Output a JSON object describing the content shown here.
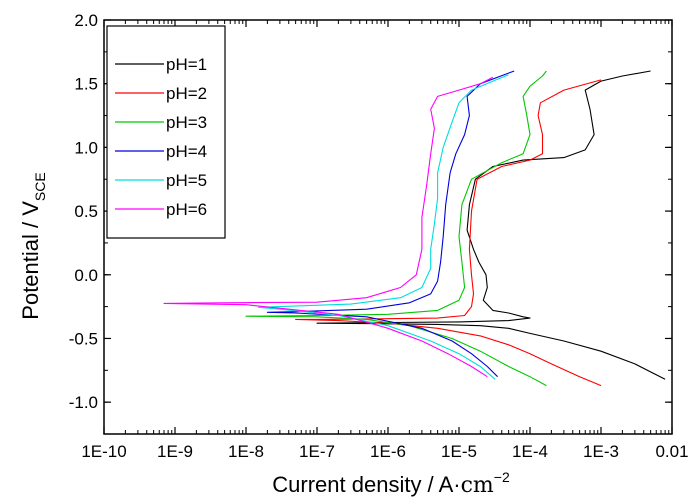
{
  "chart_data": {
    "type": "line",
    "title": "",
    "xlabel_main": "Current density / A",
    "xlabel_unit": "cm",
    "xlabel_unit_exponent": "−2",
    "ylabel_main": "Potential / V",
    "ylabel_subscript": "SCE",
    "x_scale": "log",
    "xlim": [
      1e-10,
      0.01
    ],
    "ylim": [
      -1.25,
      2.0
    ],
    "x_ticks": [
      {
        "value": 1e-10,
        "label": "1E-10"
      },
      {
        "value": 1e-09,
        "label": "1E-9"
      },
      {
        "value": 1e-08,
        "label": "1E-8"
      },
      {
        "value": 1e-07,
        "label": "1E-7"
      },
      {
        "value": 1e-06,
        "label": "1E-6"
      },
      {
        "value": 1e-05,
        "label": "1E-5"
      },
      {
        "value": 0.0001,
        "label": "1E-4"
      },
      {
        "value": 0.001,
        "label": "1E-3"
      },
      {
        "value": 0.01,
        "label": "0.01"
      }
    ],
    "y_ticks": [
      {
        "value": 2.0,
        "label": "2.0"
      },
      {
        "value": 1.5,
        "label": "1.5"
      },
      {
        "value": 1.0,
        "label": "1.0"
      },
      {
        "value": 0.5,
        "label": "0.5"
      },
      {
        "value": 0.0,
        "label": "0.0"
      },
      {
        "value": -0.5,
        "label": "-0.5"
      },
      {
        "value": -1.0,
        "label": "-1.0"
      }
    ],
    "grid": false,
    "legend_position": "top-left",
    "series": [
      {
        "name": "pH=1",
        "color": "#000000",
        "points": [
          [
            0.008,
            -0.82
          ],
          [
            0.003,
            -0.7
          ],
          [
            0.001,
            -0.6
          ],
          [
            0.0003,
            -0.52
          ],
          [
            0.0001,
            -0.46
          ],
          [
            5e-05,
            -0.42
          ],
          [
            2e-05,
            -0.4
          ],
          [
            5e-06,
            -0.39
          ],
          [
            1e-06,
            -0.385
          ],
          [
            1e-07,
            -0.38
          ],
          [
            1e-06,
            -0.375
          ],
          [
            1e-05,
            -0.37
          ],
          [
            5e-05,
            -0.36
          ],
          [
            0.0001,
            -0.34
          ],
          [
            8e-05,
            -0.33
          ],
          [
            5e-05,
            -0.3
          ],
          [
            3e-05,
            -0.28
          ],
          [
            2.2e-05,
            -0.2
          ],
          [
            2.5e-05,
            -0.1
          ],
          [
            2.4e-05,
            0.0
          ],
          [
            1.9e-05,
            0.1
          ],
          [
            1.6e-05,
            0.2
          ],
          [
            1.3e-05,
            0.35
          ],
          [
            1.4e-05,
            0.55
          ],
          [
            1.7e-05,
            0.75
          ],
          [
            3e-05,
            0.85
          ],
          [
            8e-05,
            0.9
          ],
          [
            0.0003,
            0.92
          ],
          [
            0.0006,
            0.98
          ],
          [
            0.0008,
            1.1
          ],
          [
            0.0007,
            1.3
          ],
          [
            0.0006,
            1.45
          ],
          [
            0.001,
            1.52
          ],
          [
            0.002,
            1.56
          ],
          [
            0.005,
            1.6
          ]
        ]
      },
      {
        "name": "pH=2",
        "color": "#ff0000",
        "points": [
          [
            0.001,
            -0.87
          ],
          [
            0.0005,
            -0.8
          ],
          [
            0.0002,
            -0.7
          ],
          [
            0.0001,
            -0.62
          ],
          [
            5e-05,
            -0.55
          ],
          [
            2e-05,
            -0.48
          ],
          [
            5e-06,
            -0.42
          ],
          [
            1e-06,
            -0.38
          ],
          [
            2e-07,
            -0.36
          ],
          [
            5e-08,
            -0.35
          ],
          [
            1e-07,
            -0.35
          ],
          [
            1e-06,
            -0.345
          ],
          [
            5e-06,
            -0.34
          ],
          [
            1.2e-05,
            -0.32
          ],
          [
            1.5e-05,
            -0.25
          ],
          [
            1.6e-05,
            -0.15
          ],
          [
            1.5e-05,
            0.0
          ],
          [
            1.4e-05,
            0.2
          ],
          [
            1.5e-05,
            0.5
          ],
          [
            1.8e-05,
            0.75
          ],
          [
            4e-05,
            0.85
          ],
          [
            0.0001,
            0.9
          ],
          [
            0.00015,
            0.95
          ],
          [
            0.00015,
            1.1
          ],
          [
            0.00013,
            1.25
          ],
          [
            0.00014,
            1.35
          ],
          [
            0.0003,
            1.45
          ],
          [
            0.001,
            1.53
          ]
        ]
      },
      {
        "name": "pH=3",
        "color": "#00c800",
        "points": [
          [
            0.00017,
            -0.87
          ],
          [
            0.0001,
            -0.8
          ],
          [
            5e-05,
            -0.72
          ],
          [
            2e-05,
            -0.6
          ],
          [
            8e-06,
            -0.5
          ],
          [
            2e-06,
            -0.4
          ],
          [
            5e-07,
            -0.35
          ],
          [
            1e-07,
            -0.33
          ],
          [
            1e-08,
            -0.325
          ],
          [
            1e-07,
            -0.32
          ],
          [
            1e-06,
            -0.31
          ],
          [
            5e-06,
            -0.28
          ],
          [
            1e-05,
            -0.2
          ],
          [
            1.2e-05,
            -0.1
          ],
          [
            1.1e-05,
            0.1
          ],
          [
            1e-05,
            0.3
          ],
          [
            1.1e-05,
            0.55
          ],
          [
            1.5e-05,
            0.75
          ],
          [
            4e-05,
            0.88
          ],
          [
            8e-05,
            0.95
          ],
          [
            0.0001,
            1.1
          ],
          [
            9e-05,
            1.25
          ],
          [
            8e-05,
            1.4
          ],
          [
            0.0001,
            1.48
          ],
          [
            0.00015,
            1.56
          ],
          [
            0.00017,
            1.6
          ]
        ]
      },
      {
        "name": "pH=4",
        "color": "#0000dd",
        "points": [
          [
            3.5e-05,
            -0.8
          ],
          [
            2.5e-05,
            -0.72
          ],
          [
            1.5e-05,
            -0.62
          ],
          [
            8e-06,
            -0.52
          ],
          [
            3e-06,
            -0.42
          ],
          [
            5e-07,
            -0.33
          ],
          [
            5e-08,
            -0.3
          ],
          [
            2e-08,
            -0.295
          ],
          [
            5e-08,
            -0.29
          ],
          [
            5e-07,
            -0.27
          ],
          [
            2e-06,
            -0.22
          ],
          [
            4e-06,
            -0.15
          ],
          [
            5e-06,
            -0.05
          ],
          [
            5.5e-06,
            0.1
          ],
          [
            6e-06,
            0.3
          ],
          [
            6.5e-06,
            0.55
          ],
          [
            7.5e-06,
            0.8
          ],
          [
            9e-06,
            0.95
          ],
          [
            1.2e-05,
            1.1
          ],
          [
            1.4e-05,
            1.25
          ],
          [
            1.3e-05,
            1.4
          ],
          [
            2e-05,
            1.5
          ],
          [
            6e-05,
            1.6
          ]
        ]
      },
      {
        "name": "pH=5",
        "color": "#00dddd",
        "points": [
          [
            3.2e-05,
            -0.82
          ],
          [
            2e-05,
            -0.72
          ],
          [
            1e-05,
            -0.62
          ],
          [
            4e-06,
            -0.52
          ],
          [
            1e-06,
            -0.4
          ],
          [
            2e-07,
            -0.32
          ],
          [
            3e-08,
            -0.27
          ],
          [
            1.5e-08,
            -0.255
          ],
          [
            3e-08,
            -0.25
          ],
          [
            3e-07,
            -0.23
          ],
          [
            1.5e-06,
            -0.18
          ],
          [
            3e-06,
            -0.1
          ],
          [
            4e-06,
            0.05
          ],
          [
            4e-06,
            0.2
          ],
          [
            4.5e-06,
            0.4
          ],
          [
            5e-06,
            0.6
          ],
          [
            5e-06,
            0.8
          ],
          [
            6e-06,
            1.0
          ],
          [
            8e-06,
            1.2
          ],
          [
            1e-05,
            1.35
          ],
          [
            1.5e-05,
            1.45
          ],
          [
            3e-05,
            1.52
          ],
          [
            5e-05,
            1.57
          ]
        ]
      },
      {
        "name": "pH=6",
        "color": "#ff00ff",
        "points": [
          [
            2.5e-05,
            -0.8
          ],
          [
            1.5e-05,
            -0.72
          ],
          [
            7e-06,
            -0.62
          ],
          [
            3e-06,
            -0.52
          ],
          [
            1e-06,
            -0.42
          ],
          [
            2e-07,
            -0.31
          ],
          [
            1e-08,
            -0.235
          ],
          [
            7e-10,
            -0.225
          ],
          [
            5e-09,
            -0.22
          ],
          [
            1e-07,
            -0.215
          ],
          [
            5e-07,
            -0.18
          ],
          [
            1.5e-06,
            -0.1
          ],
          [
            2.5e-06,
            0.0
          ],
          [
            3e-06,
            0.2
          ],
          [
            3e-06,
            0.45
          ],
          [
            3.5e-06,
            0.7
          ],
          [
            4e-06,
            0.95
          ],
          [
            4.5e-06,
            1.15
          ],
          [
            4e-06,
            1.3
          ],
          [
            5e-06,
            1.4
          ],
          [
            1e-05,
            1.45
          ],
          [
            2e-05,
            1.5
          ],
          [
            3e-05,
            1.55
          ]
        ]
      }
    ]
  }
}
